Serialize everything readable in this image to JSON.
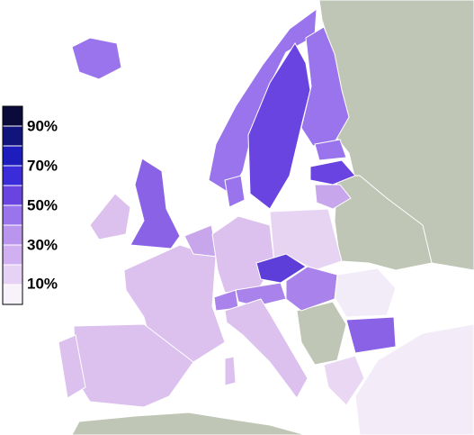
{
  "legend": {
    "labels": [
      "90%",
      "70%",
      "50%",
      "30%",
      "10%"
    ]
  }
}
